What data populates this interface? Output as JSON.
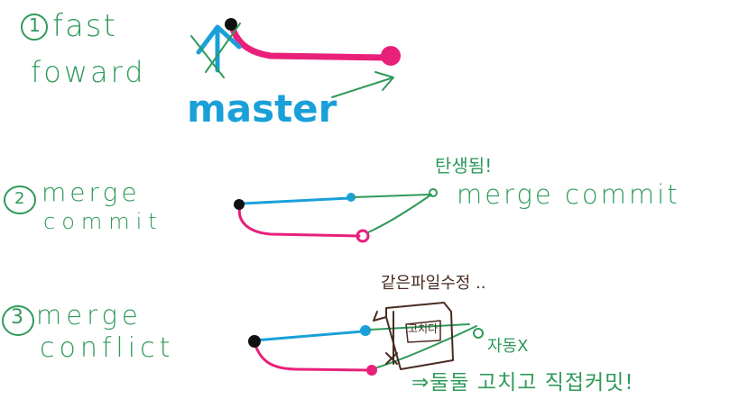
{
  "section1": {
    "number": "1",
    "title_line1": "fast",
    "title_line2": "foward",
    "branch_label": "master"
  },
  "section2": {
    "number": "2",
    "title_line1": "merge",
    "title_line2": "commit",
    "note_korean": "탄생됨!",
    "note": "merge commit"
  },
  "section3": {
    "number": "3",
    "title_line1": "merge",
    "title_line2": "conflict",
    "top_note": "같은파일수정 ..",
    "file_label": "고치다",
    "auto_note": "자동X",
    "bottom_note": "⇒둘둘 고치고 직접커밋!"
  },
  "colors": {
    "green": "#2f9a5a",
    "blue": "#1aa0d8",
    "pink": "#e8207a",
    "black": "#111111",
    "brown": "#4a2c22"
  }
}
